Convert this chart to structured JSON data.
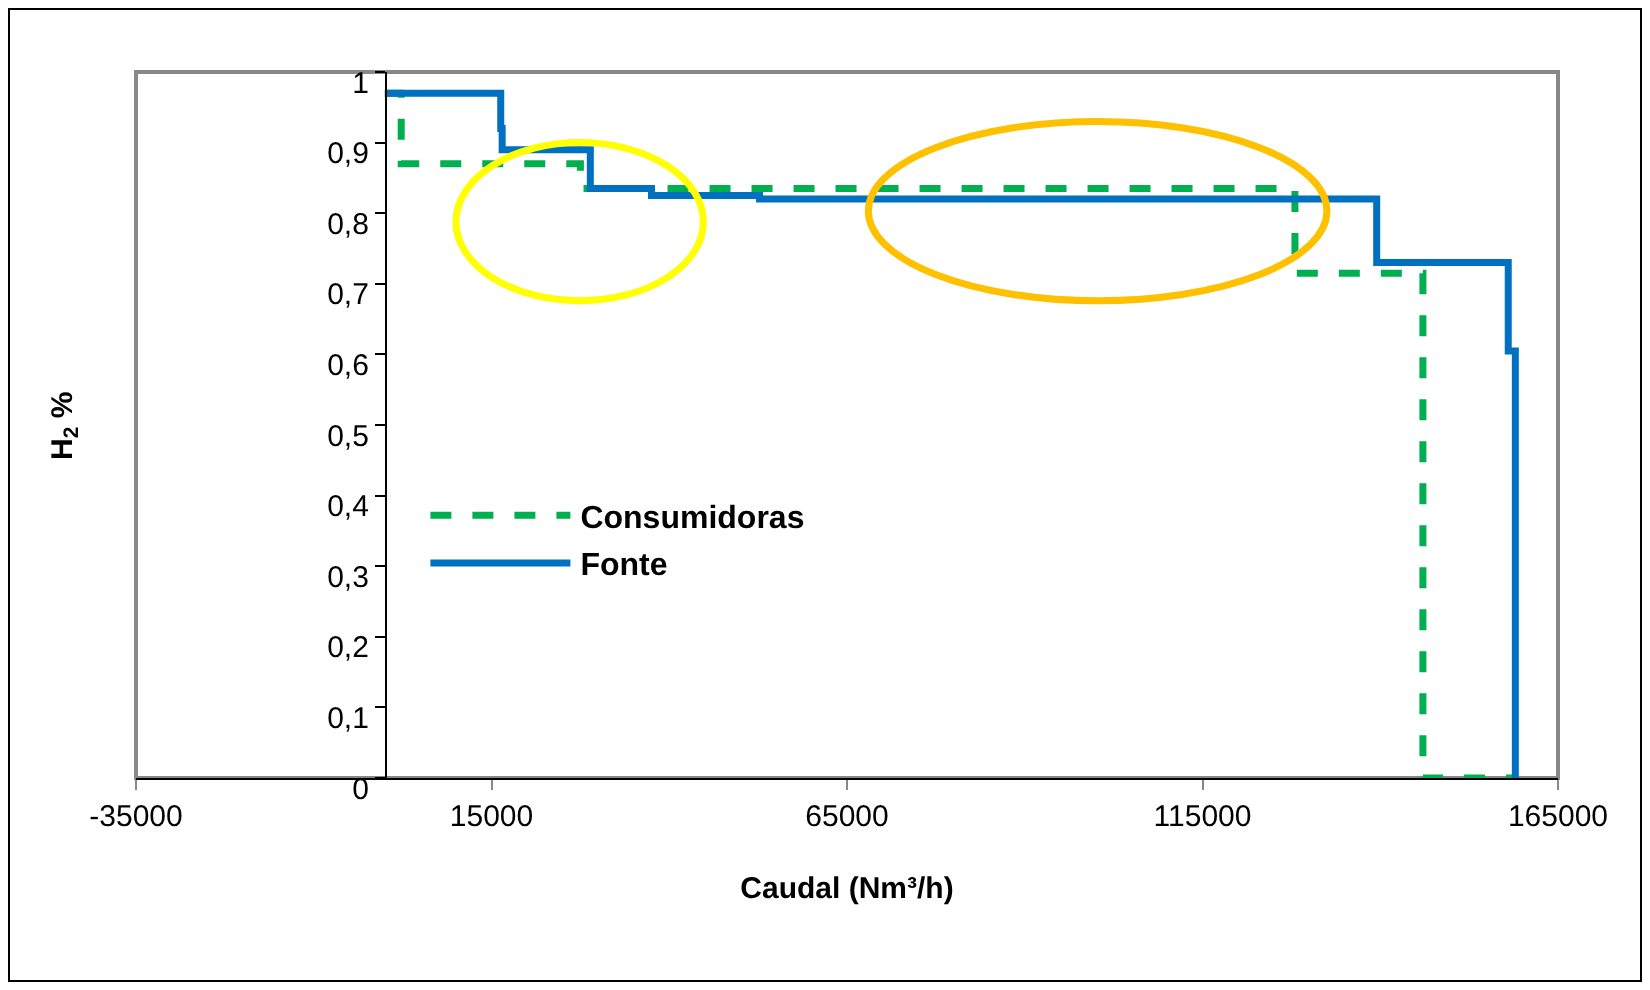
{
  "chart_data": {
    "type": "step",
    "xlabel": "Caudal (Nm³/h)",
    "ylabel": "H$_{2}$ %",
    "xlim": [
      -35000,
      165000
    ],
    "xticks": [
      -35000,
      15000,
      65000,
      115000,
      165000
    ],
    "ylim": [
      0,
      1
    ],
    "yticks": [
      {
        "value": 0,
        "label": "0"
      },
      {
        "value": 0.1,
        "label": "0,1"
      },
      {
        "value": 0.2,
        "label": "0,2"
      },
      {
        "value": 0.3,
        "label": "0,3"
      },
      {
        "value": 0.4,
        "label": "0,4"
      },
      {
        "value": 0.5,
        "label": "0,5"
      },
      {
        "value": 0.6,
        "label": "0,6"
      },
      {
        "value": 0.7,
        "label": "0,7"
      },
      {
        "value": 0.8,
        "label": "0,8"
      },
      {
        "value": 0.9,
        "label": "0,9"
      },
      {
        "value": 1,
        "label": "1"
      }
    ],
    "grid": false,
    "legend": "left",
    "marker": "none",
    "series": [
      {
        "name": "Consumidoras",
        "color": "#00b050",
        "line_style": "dashed",
        "x": [
          0,
          2300,
          27500,
          128000,
          146000,
          159000
        ],
        "values": [
          0.97,
          0.87,
          0.835,
          0.715,
          0,
          0
        ]
      },
      {
        "name": "Fonte",
        "color": "#0070c0",
        "line_style": "solid",
        "x": [
          0,
          16300,
          16500,
          28900,
          37500,
          52700,
          139500,
          158000,
          159000
        ],
        "values": [
          0.97,
          0.92,
          0.89,
          0.835,
          0.825,
          0.82,
          0.73,
          0.605,
          0
        ]
      }
    ]
  }
}
